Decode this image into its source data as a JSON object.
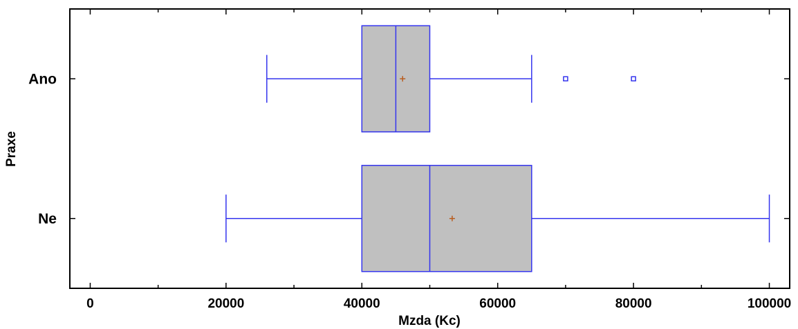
{
  "chart_data": {
    "type": "boxplot",
    "orientation": "horizontal",
    "xlabel": "Mzda (Kc)",
    "ylabel": "Praxe",
    "xlim": [
      -3000,
      103000
    ],
    "xticks": [
      0,
      20000,
      40000,
      60000,
      80000,
      100000
    ],
    "xtick_labels": [
      "0",
      "20000",
      "40000",
      "60000",
      "80000",
      "100000"
    ],
    "grid": false,
    "box_fill": "#c0c0c0",
    "stroke_color": "#3333ee",
    "mean_color": "#b85c1e",
    "categories": [
      "Ano",
      "Ne"
    ],
    "boxes": [
      {
        "name": "Ano",
        "whisker_low": 26000,
        "q1": 40000,
        "median": 45000,
        "q3": 50000,
        "whisker_high": 65000,
        "mean": 46000,
        "outliers": [
          70000,
          80000
        ]
      },
      {
        "name": "Ne",
        "whisker_low": 20000,
        "q1": 40000,
        "median": 50000,
        "q3": 65000,
        "whisker_high": 100000,
        "mean": 53300,
        "outliers": []
      }
    ]
  }
}
